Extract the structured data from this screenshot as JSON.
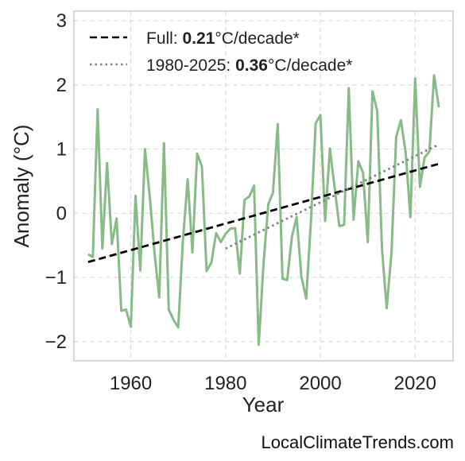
{
  "chart_data": {
    "type": "line",
    "title": "",
    "xlabel": "Year",
    "ylabel": "Anomaly (°C)",
    "xlim": [
      1948,
      2028
    ],
    "ylim": [
      -2.3,
      3.15
    ],
    "x_ticks": [
      1960,
      1980,
      2000,
      2020
    ],
    "x_tick_labels": [
      "1960",
      "1980",
      "2000",
      "2020"
    ],
    "y_ticks": [
      -2,
      -1,
      0,
      1,
      2,
      3
    ],
    "y_tick_labels": [
      "−2",
      "−1",
      "0",
      "1",
      "2",
      "3"
    ],
    "grid": true,
    "legend_position": "top-left",
    "series": [
      {
        "style": "line",
        "color": "#88bb88",
        "x": [
          1951,
          1952,
          1953,
          1954,
          1955,
          1956,
          1957,
          1958,
          1959,
          1960,
          1961,
          1962,
          1963,
          1964,
          1965,
          1966,
          1967,
          1968,
          1969,
          1970,
          1971,
          1972,
          1973,
          1974,
          1975,
          1976,
          1977,
          1978,
          1979,
          1980,
          1981,
          1982,
          1983,
          1984,
          1985,
          1986,
          1987,
          1988,
          1989,
          1990,
          1991,
          1992,
          1993,
          1994,
          1995,
          1996,
          1997,
          1998,
          1999,
          2000,
          2001,
          2002,
          2003,
          2004,
          2005,
          2006,
          2007,
          2008,
          2009,
          2010,
          2011,
          2012,
          2013,
          2014,
          2015,
          2016,
          2017,
          2018,
          2019,
          2020,
          2021,
          2022,
          2023,
          2024,
          2025
        ],
        "values": [
          -0.64,
          -0.68,
          1.62,
          -0.55,
          0.78,
          -0.48,
          -0.08,
          -1.52,
          -1.5,
          -1.77,
          0.27,
          -0.89,
          1.0,
          0.26,
          -0.62,
          -1.31,
          1.09,
          -1.5,
          -1.66,
          -1.78,
          -0.43,
          0.53,
          -0.61,
          0.93,
          0.73,
          -0.9,
          -0.77,
          -0.31,
          -0.45,
          -0.32,
          -0.24,
          -0.23,
          -0.94,
          0.21,
          0.26,
          0.43,
          -2.05,
          -0.79,
          0.14,
          0.32,
          1.39,
          -1.02,
          -1.04,
          -0.36,
          -0.06,
          -0.99,
          -1.33,
          -0.14,
          1.4,
          1.53,
          -0.12,
          1.01,
          0.41,
          -0.2,
          -0.18,
          1.95,
          -0.1,
          0.81,
          0.63,
          -0.45,
          1.9,
          1.59,
          -0.56,
          -1.48,
          -0.62,
          1.19,
          1.45,
          0.94,
          -0.06,
          2.1,
          0.41,
          0.87,
          0.96,
          2.15,
          1.65
        ]
      },
      {
        "name": "Full: 0.21°C/decade*",
        "label_prefix": "Full: ",
        "label_value": "0.21",
        "label_suffix": "°C/decade*",
        "style": "dashed",
        "color": "#000000",
        "x": [
          1951,
          2025
        ],
        "values": [
          -0.76,
          0.77
        ]
      },
      {
        "name": "1980-2025: 0.36°C/decade*",
        "label_prefix": "1980-2025: ",
        "label_value": "0.36",
        "label_suffix": "°C/decade*",
        "style": "dotted",
        "color": "#808080",
        "x": [
          1980,
          2025
        ],
        "values": [
          -0.55,
          1.07
        ]
      }
    ]
  },
  "watermark": "LocalClimateTrends.com"
}
